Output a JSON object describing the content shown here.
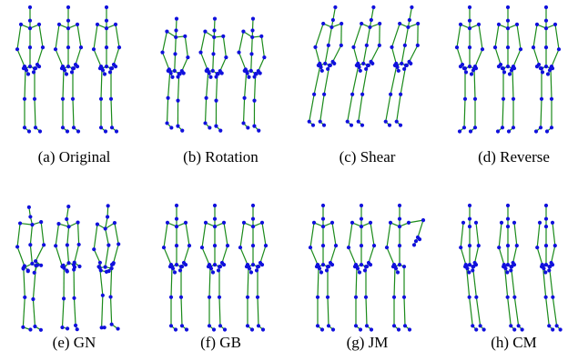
{
  "panels": [
    {
      "label": "(a)  Original",
      "variant": "original"
    },
    {
      "label": "(b)  Rotation",
      "variant": "rotation"
    },
    {
      "label": "(c)  Shear",
      "variant": "shear"
    },
    {
      "label": "(d)  Reverse",
      "variant": "reverse"
    },
    {
      "label": "(e)  GN",
      "variant": "gn"
    },
    {
      "label": "(f)  GB",
      "variant": "gb"
    },
    {
      "label": "(g)  JM",
      "variant": "jm"
    },
    {
      "label": "(h)  CM",
      "variant": "cm"
    }
  ],
  "colors": {
    "bone": "#1a8a1a",
    "joint": "#1010dd",
    "caption": "#000000"
  }
}
